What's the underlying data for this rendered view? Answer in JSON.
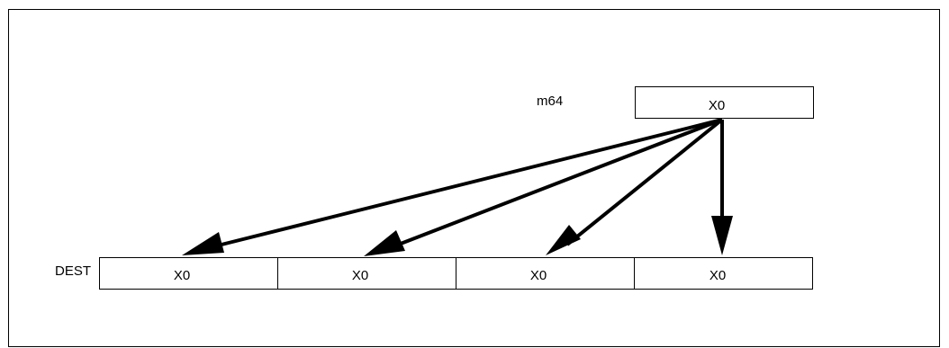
{
  "source": {
    "label": "m64",
    "cell": "X0"
  },
  "destination": {
    "label": "DEST",
    "cells": [
      "X0",
      "X0",
      "X0",
      "X0"
    ]
  },
  "colors": {
    "stroke": "#000000",
    "background": "#ffffff"
  }
}
